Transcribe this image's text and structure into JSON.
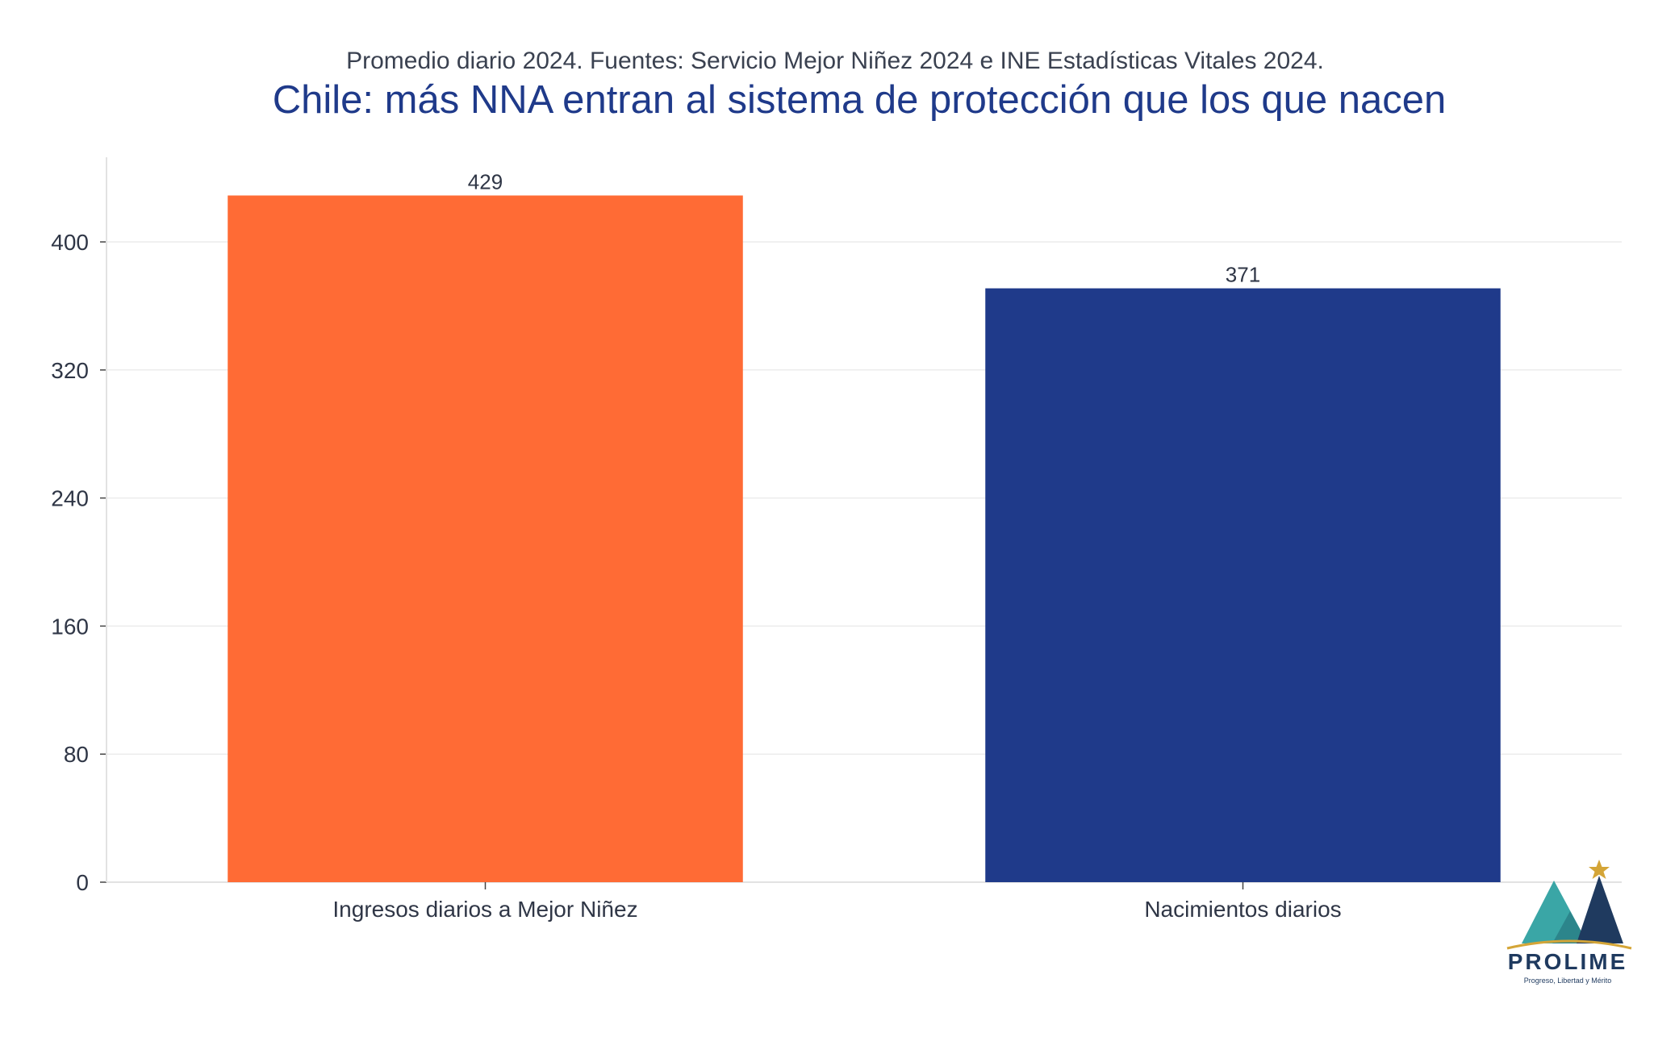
{
  "chart_data": {
    "type": "bar",
    "subtitle": "Promedio diario 2024. Fuentes: Servicio Mejor Niñez 2024 e INE Estadísticas Vitales 2024.",
    "title": "Chile: más NNA entran al sistema de protección que los que nacen",
    "xlabel": "",
    "ylabel": "",
    "categories": [
      "Ingresos diarios a Mejor Niñez",
      "Nacimientos diarios"
    ],
    "values": [
      429,
      371
    ],
    "data_labels": [
      "429",
      "371"
    ],
    "bar_colors": [
      "#ff6b35",
      "#1f3a8a"
    ],
    "ylim": [
      0,
      450
    ],
    "yticks": [
      0,
      80,
      160,
      240,
      320,
      400
    ],
    "ytick_labels": [
      "0",
      "80",
      "160",
      "240",
      "320",
      "400"
    ],
    "grid": true,
    "legend": "none"
  },
  "logo": {
    "name": "PROLIME",
    "tagline": "Progreso, Libertad y Mérito",
    "colors": {
      "teal": "#3aa6a6",
      "navy": "#1f3a5f",
      "gold": "#d4a537"
    }
  }
}
